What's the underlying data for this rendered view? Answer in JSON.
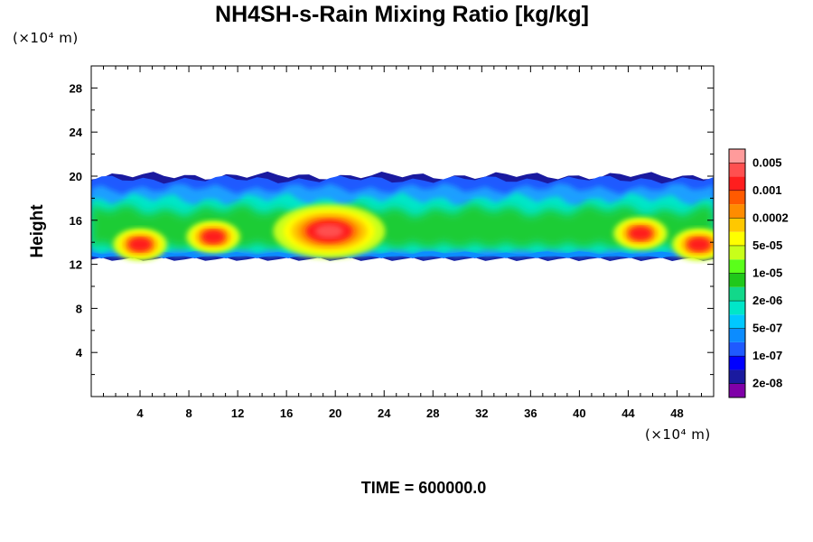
{
  "chart_data": {
    "type": "heatmap",
    "title": "NH4SH-s-Rain Mixing Ratio [kg/kg]",
    "ylabel": "Height",
    "xlabel": "",
    "x_unit": "(×10⁴ m)",
    "y_unit": "(×10⁴ m)",
    "xlim": [
      0,
      51
    ],
    "ylim": [
      0,
      30
    ],
    "x_ticks": [
      4,
      8,
      12,
      16,
      20,
      24,
      28,
      32,
      36,
      40,
      44,
      48
    ],
    "y_ticks": [
      4,
      8,
      12,
      16,
      20,
      24,
      28
    ],
    "grid": false,
    "colorbar": {
      "colors": [
        "#7f00a8",
        "#1a1a9f",
        "#0000ff",
        "#1f5aff",
        "#0c8cff",
        "#00c8ff",
        "#00e6c8",
        "#12d88a",
        "#20c81a",
        "#5aff1a",
        "#c8ff1a",
        "#ffff00",
        "#ffc800",
        "#ff8c00",
        "#ff5a00",
        "#ff1e1e",
        "#ff5050",
        "#ff9b9b"
      ],
      "labels": [
        "2e-08",
        "1e-07",
        "5e-07",
        "2e-06",
        "1e-05",
        "5e-05",
        "0.0002",
        "0.001",
        "0.005"
      ]
    },
    "cloud_band": {
      "bottom_height": 12.7,
      "top_height": 19.7,
      "description_levels": {
        "top_edge": "2e-08",
        "upper_layer": "1e-07",
        "middle_layer": "2e-06",
        "core": "0.005"
      },
      "cores": [
        {
          "x": 4.0,
          "y": 13.8,
          "peak": "0.001"
        },
        {
          "x": 10.0,
          "y": 14.5,
          "peak": "0.001"
        },
        {
          "x": 19.5,
          "y": 15.0,
          "peak": "0.005"
        },
        {
          "x": 45.0,
          "y": 14.8,
          "peak": "0.001"
        },
        {
          "x": 49.8,
          "y": 13.8,
          "peak": "0.001"
        }
      ]
    }
  },
  "time_label": "TIME = 600000.0"
}
